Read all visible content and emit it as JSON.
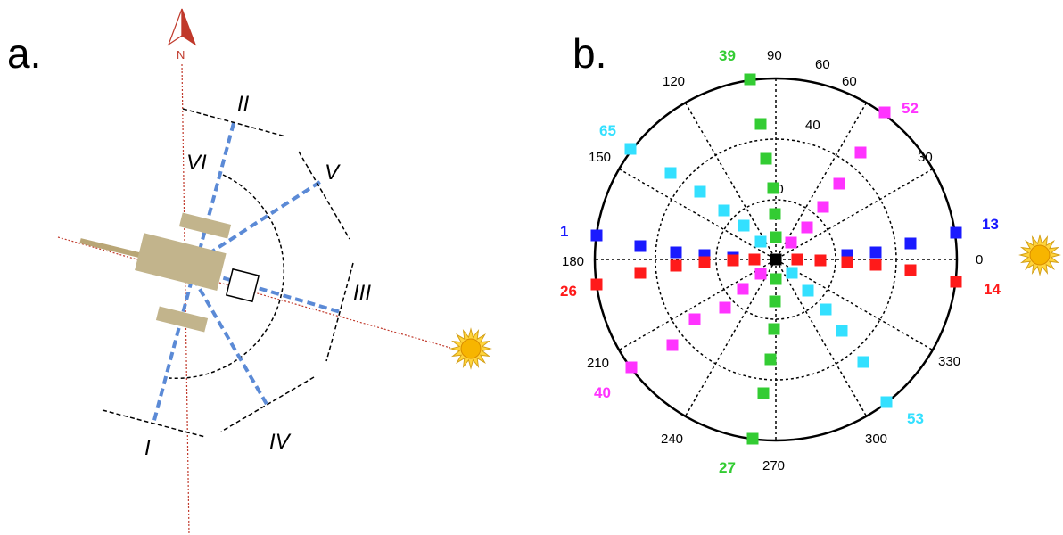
{
  "panel_a": {
    "label": "a.",
    "north_label": "N",
    "sectors": [
      "I",
      "II",
      "III",
      "IV",
      "V",
      "VI"
    ]
  },
  "panel_b": {
    "label": "b.",
    "angle_labels": [
      "0",
      "30",
      "60",
      "90",
      "120",
      "150",
      "180",
      "210",
      "240",
      "270",
      "300",
      "330"
    ],
    "radius_labels": [
      "20",
      "40",
      "60"
    ],
    "index_labels": [
      {
        "text": "1",
        "color": "#1a1aff"
      },
      {
        "text": "13",
        "color": "#1a1aff"
      },
      {
        "text": "26",
        "color": "#ff1a1a"
      },
      {
        "text": "14",
        "color": "#ff1a1a"
      },
      {
        "text": "39",
        "color": "#33cc33"
      },
      {
        "text": "27",
        "color": "#33cc33"
      },
      {
        "text": "52",
        "color": "#ff33ff"
      },
      {
        "text": "40",
        "color": "#ff33ff"
      },
      {
        "text": "65",
        "color": "#33e0ff"
      },
      {
        "text": "53",
        "color": "#33e0ff"
      }
    ]
  },
  "colors": {
    "blue": "#1a1aff",
    "red": "#ff1a1a",
    "green": "#33cc33",
    "magenta": "#ff33ff",
    "cyan": "#33e0ff",
    "center": "#000000",
    "sensor_lines": "#5b8ad6",
    "north_line": "#c0392b",
    "satellite_body": "#c2b48c"
  },
  "icons": [
    "north-arrow-icon",
    "sun-icon"
  ]
}
